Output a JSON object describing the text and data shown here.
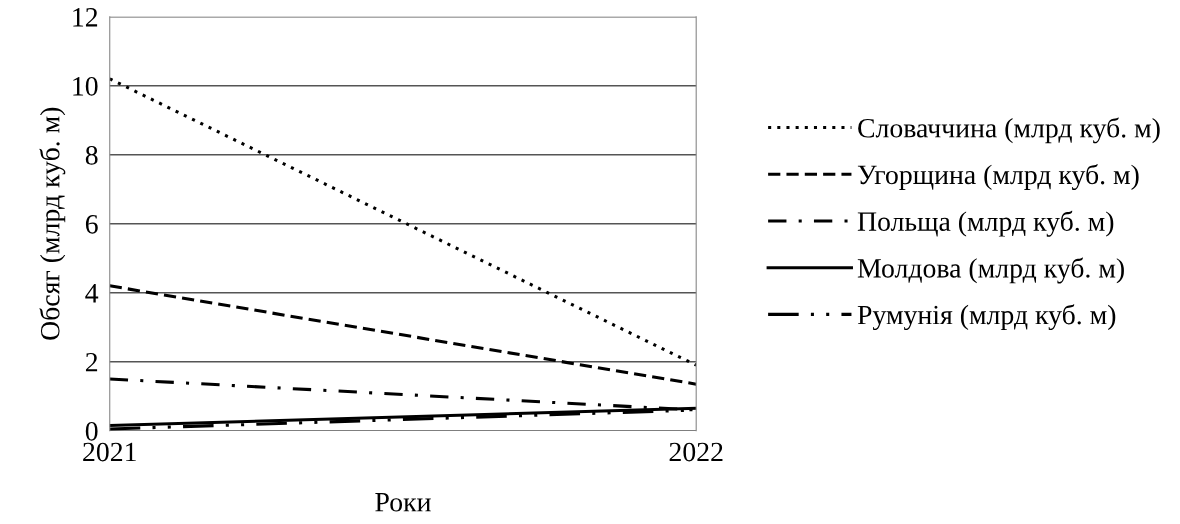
{
  "chart_data": {
    "type": "line",
    "xlabel": "Роки",
    "ylabel": "Обсяг (млрд куб. м)",
    "x": [
      2021,
      2022
    ],
    "xlim": [
      2021,
      2022
    ],
    "xticks": [
      2021,
      2022
    ],
    "ylim": [
      0,
      12
    ],
    "yticks": [
      0,
      2,
      4,
      6,
      8,
      10,
      12
    ],
    "grid": "y",
    "legend": "right",
    "series": [
      {
        "name": "Словаччина (млрд куб. м)",
        "color": "#000000",
        "line_style": "dotted",
        "values": [
          10.2,
          1.9
        ]
      },
      {
        "name": "Угорщина (млрд куб. м)",
        "color": "#000000",
        "line_style": "dashed",
        "values": [
          4.2,
          1.35
        ]
      },
      {
        "name": "Польща (млрд куб. м)",
        "color": "#000000",
        "line_style": "dashdot",
        "values": [
          1.5,
          0.6
        ]
      },
      {
        "name": "Молдова (млрд куб. м)",
        "color": "#000000",
        "line_style": "solid",
        "values": [
          0.15,
          0.65
        ]
      },
      {
        "name": "Румунія (млрд куб. м)",
        "color": "#000000",
        "line_style": "dashdotdot",
        "values": [
          0.05,
          0.6
        ]
      }
    ]
  }
}
